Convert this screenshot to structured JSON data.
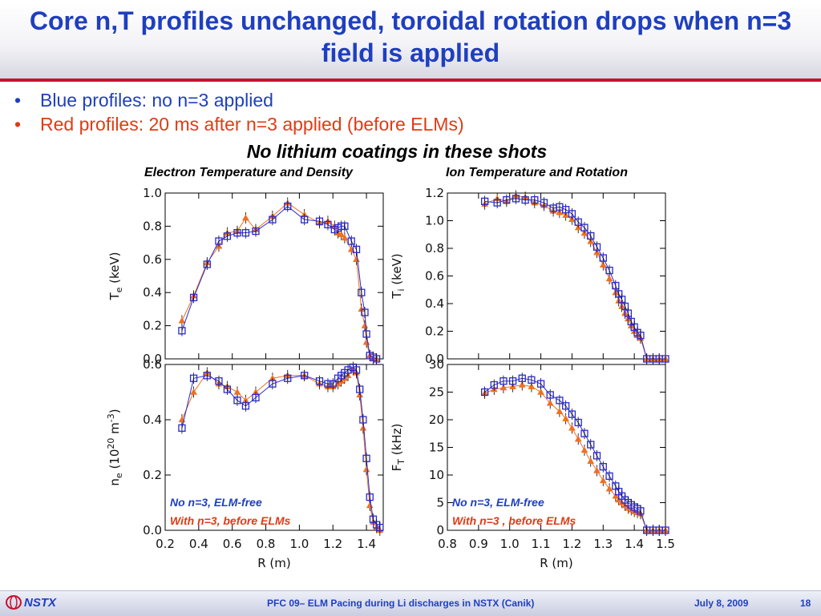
{
  "slide": {
    "title": "Core n,T profiles unchanged, toroidal rotation drops when n=3 field is applied",
    "bullets": [
      {
        "text": "Blue profiles: no n=3 applied",
        "color": "#1f3fbf"
      },
      {
        "text": "Red profiles: 20 ms after n=3 applied (before ELMs)",
        "color": "#e03b14"
      }
    ],
    "subheading": "No lithium coatings in these shots",
    "left_column_title": "Electron Temperature and Density",
    "right_column_title": "Ion Temperature and Rotation",
    "footer": {
      "logo_text": "NSTX",
      "center": "PFC 09– ELM Pacing during Li discharges in NSTX (Canik)",
      "date": "July 8, 2009",
      "page": "18"
    },
    "colors": {
      "title": "#1f3fbf",
      "accent_rule": "#c8102e",
      "series_blue": "#2a2ad0",
      "series_red": "#f07020"
    }
  },
  "chart_data": [
    {
      "type": "scatter",
      "id": "te",
      "ylabel": "T_e (keV)",
      "xlim": [
        0.2,
        1.5
      ],
      "ylim": [
        0.0,
        1.0
      ],
      "x_ticks": [
        0.2,
        0.4,
        0.6,
        0.8,
        1.0,
        1.2,
        1.4
      ],
      "y_ticks": [
        0.0,
        0.2,
        0.4,
        0.6,
        0.8,
        1.0
      ],
      "y_tick_labels": [
        "0.0",
        "0.2",
        "0.4",
        "0.6",
        "0.8",
        "1.0"
      ],
      "series": [
        {
          "name": "No n=3, ELM-free",
          "color": "#2a2ad0",
          "marker": "square",
          "x": [
            0.3,
            0.37,
            0.45,
            0.52,
            0.57,
            0.63,
            0.68,
            0.74,
            0.84,
            0.93,
            1.03,
            1.12,
            1.17,
            1.21,
            1.23,
            1.25,
            1.27,
            1.31,
            1.34,
            1.37,
            1.39,
            1.4,
            1.42,
            1.44,
            1.46
          ],
          "y": [
            0.17,
            0.37,
            0.57,
            0.71,
            0.74,
            0.76,
            0.76,
            0.77,
            0.84,
            0.92,
            0.84,
            0.83,
            0.81,
            0.78,
            0.79,
            0.8,
            0.8,
            0.71,
            0.66,
            0.4,
            0.28,
            0.15,
            0.02,
            0.01,
            0.0
          ]
        },
        {
          "name": "With n=3, before ELMs",
          "color": "#f07020",
          "marker": "triangle",
          "x": [
            0.3,
            0.37,
            0.45,
            0.52,
            0.57,
            0.63,
            0.68,
            0.74,
            0.84,
            0.93,
            1.03,
            1.12,
            1.17,
            1.21,
            1.23,
            1.25,
            1.27,
            1.31,
            1.34,
            1.37,
            1.39,
            1.4,
            1.42,
            1.44,
            1.46
          ],
          "y": [
            0.23,
            0.38,
            0.58,
            0.68,
            0.76,
            0.77,
            0.85,
            0.78,
            0.86,
            0.94,
            0.87,
            0.82,
            0.83,
            0.8,
            0.76,
            0.75,
            0.73,
            0.66,
            0.6,
            0.3,
            0.2,
            0.1,
            0.02,
            0.0,
            0.0
          ]
        }
      ]
    },
    {
      "type": "scatter",
      "id": "ti",
      "ylabel": "T_i (keV)",
      "xlim": [
        0.8,
        1.5
      ],
      "ylim": [
        0.0,
        1.2
      ],
      "x_ticks": [
        0.8,
        0.9,
        1.0,
        1.1,
        1.2,
        1.3,
        1.4,
        1.5
      ],
      "y_ticks": [
        0.0,
        0.2,
        0.4,
        0.6,
        0.8,
        1.0,
        1.2
      ],
      "y_tick_labels": [
        "0.0",
        "0.2",
        "0.4",
        "0.6",
        "0.8",
        "1.0",
        "1.2"
      ],
      "series": [
        {
          "name": "No n=3, ELM-free",
          "color": "#2a2ad0",
          "marker": "square",
          "x": [
            0.92,
            0.96,
            0.99,
            1.02,
            1.05,
            1.08,
            1.11,
            1.14,
            1.16,
            1.18,
            1.2,
            1.22,
            1.24,
            1.26,
            1.28,
            1.3,
            1.32,
            1.34,
            1.35,
            1.36,
            1.37,
            1.38,
            1.39,
            1.4,
            1.41,
            1.42,
            1.44,
            1.46,
            1.48,
            1.5
          ],
          "y": [
            1.14,
            1.13,
            1.15,
            1.16,
            1.15,
            1.15,
            1.13,
            1.09,
            1.1,
            1.08,
            1.05,
            0.99,
            0.95,
            0.89,
            0.81,
            0.73,
            0.64,
            0.53,
            0.47,
            0.43,
            0.38,
            0.33,
            0.27,
            0.23,
            0.19,
            0.17,
            0.0,
            0.0,
            0.0,
            0.0
          ]
        },
        {
          "name": "With n=3, before ELMs",
          "color": "#f07020",
          "marker": "triangle",
          "x": [
            0.92,
            0.96,
            0.99,
            1.02,
            1.05,
            1.08,
            1.11,
            1.14,
            1.16,
            1.18,
            1.2,
            1.22,
            1.24,
            1.26,
            1.28,
            1.3,
            1.32,
            1.34,
            1.35,
            1.36,
            1.37,
            1.38,
            1.39,
            1.4,
            1.41,
            1.42,
            1.44,
            1.46,
            1.48,
            1.5
          ],
          "y": [
            1.12,
            1.16,
            1.14,
            1.18,
            1.17,
            1.13,
            1.11,
            1.07,
            1.06,
            1.04,
            1.01,
            0.95,
            0.91,
            0.85,
            0.77,
            0.68,
            0.58,
            0.48,
            0.42,
            0.38,
            0.33,
            0.29,
            0.24,
            0.2,
            0.17,
            0.15,
            0.0,
            0.0,
            0.0,
            0.0
          ]
        }
      ]
    },
    {
      "type": "scatter",
      "id": "ne",
      "ylabel": "n_e (10^20 m^-3)",
      "xlim": [
        0.2,
        1.5
      ],
      "ylim": [
        0.0,
        0.6
      ],
      "x_ticks": [
        0.2,
        0.4,
        0.6,
        0.8,
        1.0,
        1.2,
        1.4
      ],
      "x_tick_labels": [
        "0.2",
        "0.4",
        "0.6",
        "0.8",
        "1.0",
        "1.2",
        "1.4"
      ],
      "y_ticks": [
        0.0,
        0.2,
        0.4,
        0.6
      ],
      "y_tick_labels": [
        "0.0",
        "0.2",
        "0.4",
        "0.6"
      ],
      "xlabel": "R (m)",
      "series": [
        {
          "name": "No n=3, ELM-free",
          "color": "#2a2ad0",
          "marker": "square",
          "x": [
            0.3,
            0.37,
            0.45,
            0.52,
            0.57,
            0.63,
            0.68,
            0.74,
            0.84,
            0.93,
            1.03,
            1.12,
            1.17,
            1.2,
            1.23,
            1.25,
            1.27,
            1.29,
            1.32,
            1.34,
            1.36,
            1.38,
            1.4,
            1.42,
            1.44,
            1.46,
            1.48
          ],
          "y": [
            0.37,
            0.55,
            0.56,
            0.54,
            0.51,
            0.47,
            0.45,
            0.48,
            0.53,
            0.55,
            0.56,
            0.54,
            0.53,
            0.53,
            0.55,
            0.56,
            0.57,
            0.58,
            0.59,
            0.58,
            0.51,
            0.4,
            0.26,
            0.12,
            0.04,
            0.02,
            0.01
          ]
        },
        {
          "name": "With n=3, before ELMs",
          "color": "#f07020",
          "marker": "triangle",
          "x": [
            0.3,
            0.37,
            0.45,
            0.52,
            0.57,
            0.63,
            0.68,
            0.74,
            0.84,
            0.93,
            1.03,
            1.12,
            1.17,
            1.2,
            1.23,
            1.25,
            1.27,
            1.29,
            1.32,
            1.34,
            1.36,
            1.38,
            1.4,
            1.42,
            1.44,
            1.46,
            1.48
          ],
          "y": [
            0.4,
            0.5,
            0.57,
            0.53,
            0.52,
            0.5,
            0.47,
            0.5,
            0.55,
            0.56,
            0.56,
            0.53,
            0.52,
            0.52,
            0.53,
            0.54,
            0.55,
            0.56,
            0.58,
            0.57,
            0.49,
            0.37,
            0.22,
            0.09,
            0.03,
            0.01,
            0.0
          ]
        }
      ],
      "legend": {
        "position": "bottom-left",
        "entries": [
          {
            "text": "No n=3, ELM-free",
            "color": "#1f3fbf"
          },
          {
            "text": "With n=3, before ELMs",
            "color": "#e03b14"
          }
        ]
      }
    },
    {
      "type": "scatter",
      "id": "ft",
      "ylabel": "F_T (kHz)",
      "xlim": [
        0.8,
        1.5
      ],
      "ylim": [
        0,
        30
      ],
      "x_ticks": [
        0.8,
        0.9,
        1.0,
        1.1,
        1.2,
        1.3,
        1.4,
        1.5
      ],
      "x_tick_labels": [
        "0.8",
        "0.9",
        "1.0",
        "1.1",
        "1.2",
        "1.3",
        "1.4",
        "1.5"
      ],
      "y_ticks": [
        0,
        5,
        10,
        15,
        20,
        25,
        30
      ],
      "y_tick_labels": [
        "0",
        "5",
        "10",
        "15",
        "20",
        "25",
        "30"
      ],
      "xlabel": "R (m)",
      "series": [
        {
          "name": "No n=3, ELM-free",
          "color": "#2a2ad0",
          "marker": "square",
          "x": [
            0.92,
            0.95,
            0.98,
            1.01,
            1.04,
            1.07,
            1.1,
            1.13,
            1.16,
            1.18,
            1.2,
            1.22,
            1.24,
            1.26,
            1.28,
            1.3,
            1.32,
            1.34,
            1.35,
            1.36,
            1.37,
            1.38,
            1.39,
            1.4,
            1.41,
            1.42,
            1.44,
            1.46,
            1.48,
            1.5
          ],
          "y": [
            25.0,
            26.3,
            27.0,
            27.0,
            27.5,
            27.2,
            26.5,
            24.5,
            23.5,
            22.5,
            21.0,
            19.5,
            17.5,
            15.5,
            13.5,
            11.5,
            9.8,
            8.0,
            7.0,
            6.2,
            5.5,
            5.0,
            4.6,
            4.2,
            3.9,
            3.5,
            0.0,
            0.0,
            0.0,
            0.0
          ]
        },
        {
          "name": "With n=3, before ELMs",
          "color": "#f07020",
          "marker": "triangle",
          "x": [
            0.92,
            0.95,
            0.98,
            1.01,
            1.04,
            1.07,
            1.1,
            1.13,
            1.16,
            1.18,
            1.2,
            1.22,
            1.24,
            1.26,
            1.28,
            1.3,
            1.32,
            1.34,
            1.35,
            1.36,
            1.37,
            1.38,
            1.39,
            1.4,
            1.41,
            1.42,
            1.44,
            1.46,
            1.48,
            1.5
          ],
          "y": [
            24.8,
            25.5,
            25.8,
            26.0,
            26.3,
            26.0,
            25.0,
            23.0,
            21.5,
            20.2,
            18.5,
            16.5,
            14.5,
            12.5,
            10.8,
            9.0,
            7.5,
            6.2,
            5.5,
            5.0,
            4.5,
            4.0,
            3.7,
            3.4,
            3.2,
            3.0,
            0.0,
            0.0,
            0.0,
            0.0
          ]
        }
      ],
      "legend": {
        "position": "bottom-left",
        "entries": [
          {
            "text": "No n=3, ELM-free",
            "color": "#1f3fbf"
          },
          {
            "text": "With n=3 , before ELMs",
            "color": "#e03b14"
          }
        ]
      }
    }
  ]
}
